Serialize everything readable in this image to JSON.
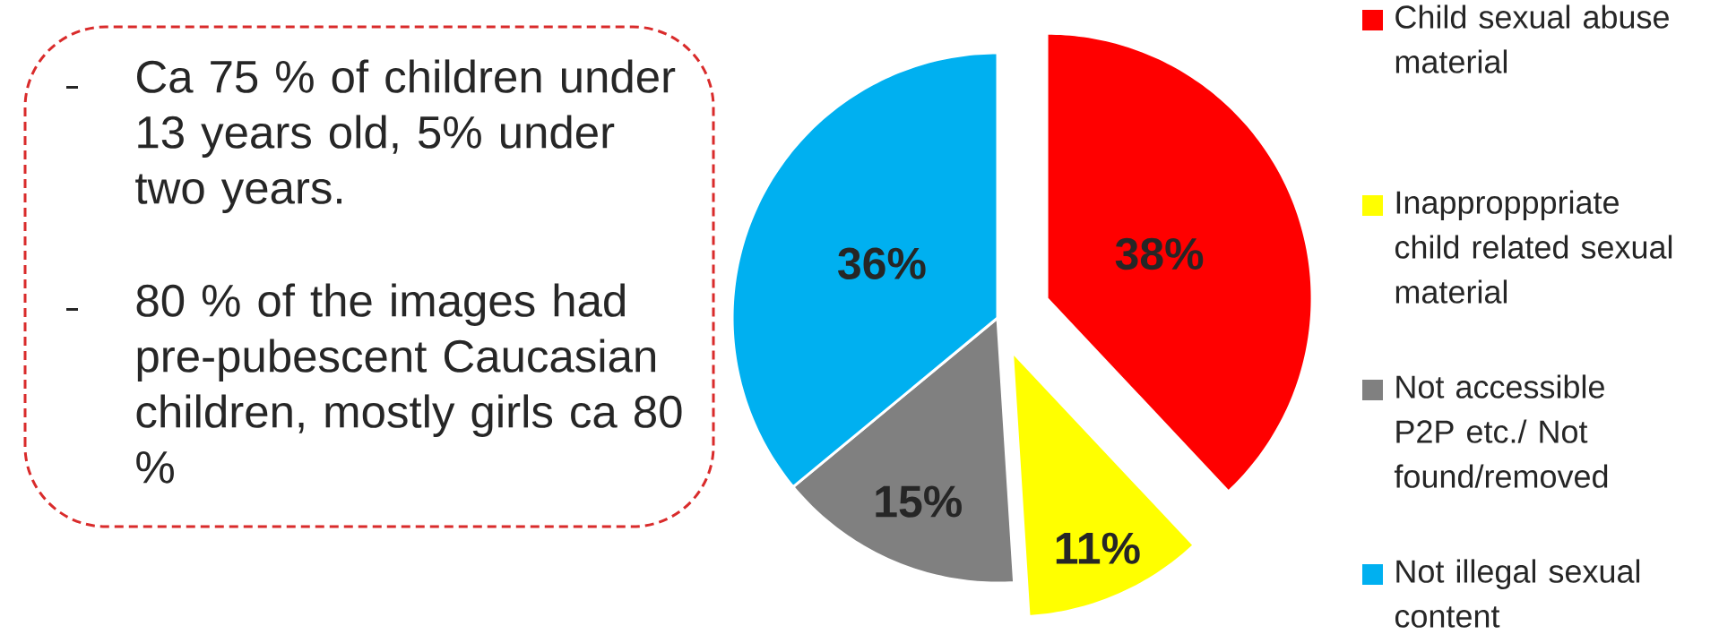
{
  "chart_data": {
    "type": "pie",
    "categories": [
      "Child sexual abuse material",
      "Inappropppriate child related sexual material",
      "Not accessible P2P etc./ Not found/removed",
      "Not illegal sexual content"
    ],
    "values": [
      38,
      11,
      15,
      36
    ],
    "colors": [
      "#ff0000",
      "#ffff00",
      "#808080",
      "#00b0f0"
    ],
    "value_labels": [
      "38%",
      "11%",
      "15%",
      "36%"
    ],
    "legend": "right",
    "annotations": [
      "Ca 75 % of children under 13 years old, 5% under two years.",
      "80 % of the images had pre-pubescent Caucasian children, mostly girls ca 80 %"
    ]
  }
}
